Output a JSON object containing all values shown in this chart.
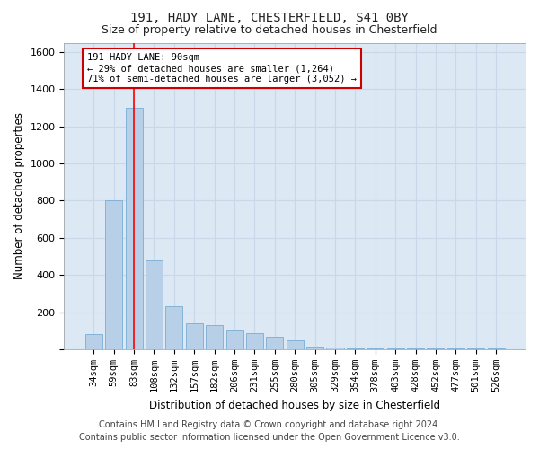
{
  "title1": "191, HADY LANE, CHESTERFIELD, S41 0BY",
  "title2": "Size of property relative to detached houses in Chesterfield",
  "xlabel": "Distribution of detached houses by size in Chesterfield",
  "ylabel": "Number of detached properties",
  "categories": [
    "34sqm",
    "59sqm",
    "83sqm",
    "108sqm",
    "132sqm",
    "157sqm",
    "182sqm",
    "206sqm",
    "231sqm",
    "255sqm",
    "280sqm",
    "305sqm",
    "329sqm",
    "354sqm",
    "378sqm",
    "403sqm",
    "428sqm",
    "452sqm",
    "477sqm",
    "501sqm",
    "526sqm"
  ],
  "values": [
    80,
    800,
    1300,
    480,
    230,
    140,
    130,
    100,
    85,
    65,
    50,
    15,
    8,
    5,
    5,
    5,
    5,
    5,
    5,
    5,
    5
  ],
  "bar_color": "#b8cfe8",
  "bar_edge_color": "#7aadd4",
  "grid_color": "#c8d8e8",
  "background_color": "#dce8f4",
  "annotation_line1": "191 HADY LANE: 90sqm",
  "annotation_line2": "← 29% of detached houses are smaller (1,264)",
  "annotation_line3": "71% of semi-detached houses are larger (3,052) →",
  "annotation_box_facecolor": "#ffffff",
  "annotation_box_edgecolor": "#cc0000",
  "redline_x": 2,
  "ylim_max": 1650,
  "yticks": [
    0,
    200,
    400,
    600,
    800,
    1000,
    1200,
    1400,
    1600
  ],
  "footer1": "Contains HM Land Registry data © Crown copyright and database right 2024.",
  "footer2": "Contains public sector information licensed under the Open Government Licence v3.0."
}
